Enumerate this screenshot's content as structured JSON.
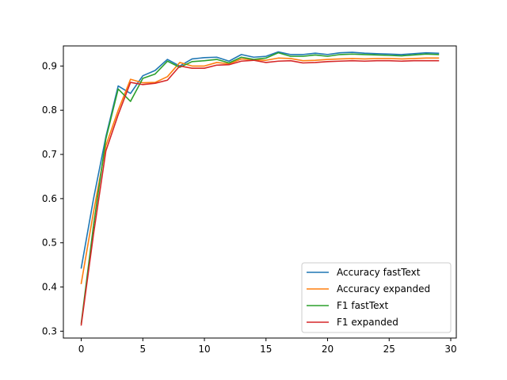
{
  "chart_data": {
    "type": "line",
    "title": "",
    "xlabel": "",
    "ylabel": "",
    "xlim": [
      -1.45,
      30.45
    ],
    "ylim": [
      0.2845,
      0.9455
    ],
    "x_ticks": [
      0,
      5,
      10,
      15,
      20,
      25,
      30
    ],
    "y_ticks": [
      0.3,
      0.4,
      0.5,
      0.6,
      0.7,
      0.8,
      0.9
    ],
    "grid": false,
    "legend_position": "lower right",
    "x": [
      0,
      1,
      2,
      3,
      4,
      5,
      6,
      7,
      8,
      9,
      10,
      11,
      12,
      13,
      14,
      15,
      16,
      17,
      18,
      19,
      20,
      21,
      22,
      23,
      24,
      25,
      26,
      27,
      28,
      29
    ],
    "series": [
      {
        "name": "Accuracy fastText",
        "color": "#1f77b4",
        "values": [
          0.443,
          0.6,
          0.74,
          0.855,
          0.838,
          0.878,
          0.89,
          0.915,
          0.9,
          0.916,
          0.919,
          0.92,
          0.911,
          0.926,
          0.92,
          0.922,
          0.932,
          0.926,
          0.926,
          0.929,
          0.926,
          0.93,
          0.931,
          0.929,
          0.928,
          0.927,
          0.926,
          0.928,
          0.93,
          0.929
        ]
      },
      {
        "name": "Accuracy expanded",
        "color": "#ff7f0e",
        "values": [
          0.408,
          0.57,
          0.72,
          0.8,
          0.87,
          0.862,
          0.863,
          0.876,
          0.908,
          0.9,
          0.9,
          0.908,
          0.905,
          0.916,
          0.914,
          0.913,
          0.918,
          0.917,
          0.912,
          0.913,
          0.915,
          0.916,
          0.917,
          0.916,
          0.917,
          0.917,
          0.916,
          0.917,
          0.918,
          0.918
        ]
      },
      {
        "name": "F1 fastText",
        "color": "#2ca02c",
        "values": [
          0.318,
          0.54,
          0.735,
          0.848,
          0.82,
          0.872,
          0.882,
          0.911,
          0.897,
          0.91,
          0.912,
          0.915,
          0.907,
          0.92,
          0.915,
          0.918,
          0.93,
          0.922,
          0.922,
          0.925,
          0.922,
          0.926,
          0.927,
          0.926,
          0.925,
          0.924,
          0.923,
          0.925,
          0.927,
          0.926
        ]
      },
      {
        "name": "F1 expanded",
        "color": "#d62728",
        "values": [
          0.314,
          0.52,
          0.708,
          0.79,
          0.863,
          0.858,
          0.861,
          0.868,
          0.9,
          0.895,
          0.895,
          0.902,
          0.903,
          0.911,
          0.913,
          0.908,
          0.911,
          0.912,
          0.907,
          0.908,
          0.91,
          0.911,
          0.912,
          0.911,
          0.912,
          0.912,
          0.911,
          0.912,
          0.912,
          0.912
        ]
      }
    ]
  }
}
